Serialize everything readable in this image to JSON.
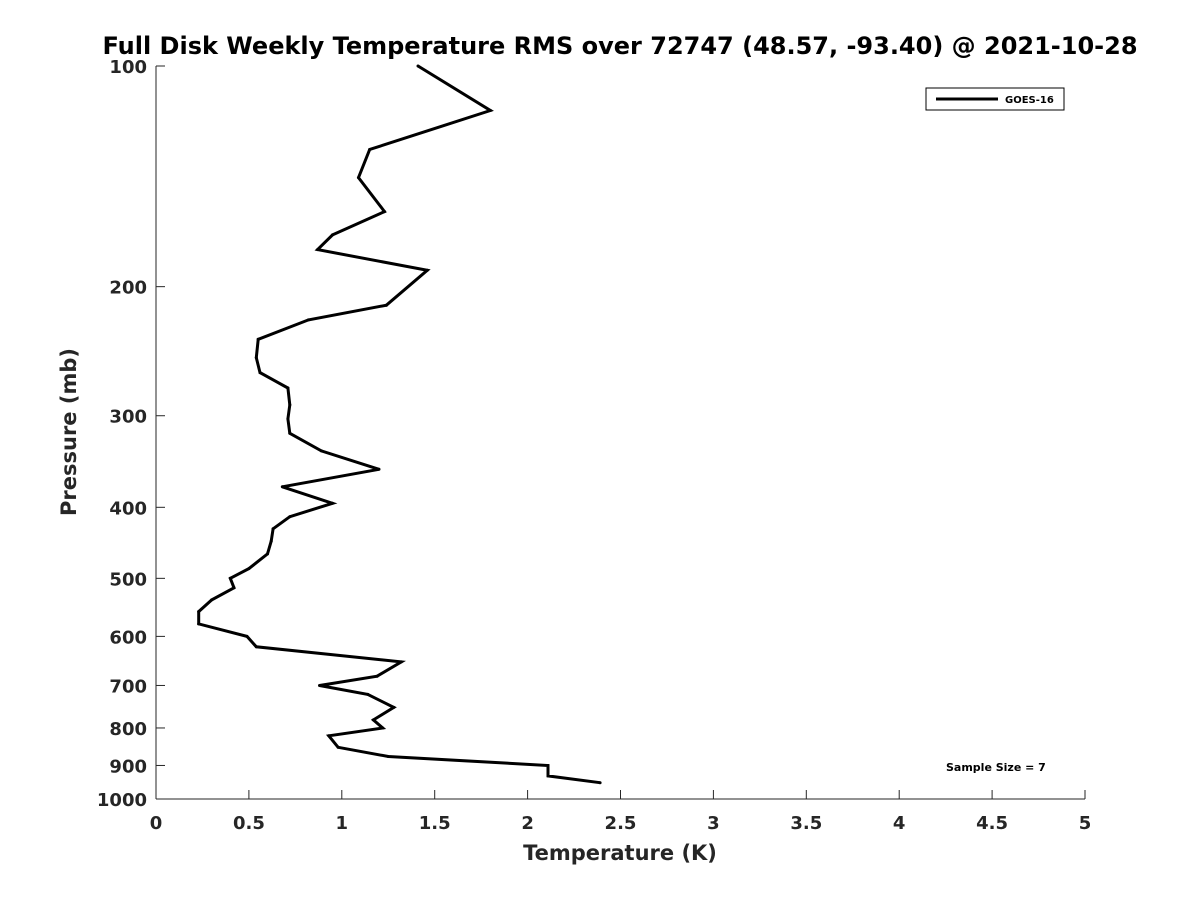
{
  "chart_data": {
    "type": "line",
    "title": "Full Disk Weekly Temperature RMS over 72747 (48.57, -93.40) @ 2021-10-28",
    "xlabel": "Temperature (K)",
    "ylabel": "Pressure (mb)",
    "xlim": [
      0,
      5
    ],
    "ylim": [
      100,
      1000
    ],
    "y_scale": "log",
    "y_reversed": true,
    "grid": false,
    "legend_position": "top-right",
    "x_ticks": [
      "0",
      "0.5",
      "1",
      "1.5",
      "2",
      "2.5",
      "3",
      "3.5",
      "4",
      "4.5",
      "5"
    ],
    "y_ticks": [
      "100",
      "200",
      "300",
      "400",
      "500",
      "600",
      "700",
      "800",
      "900",
      "1000"
    ],
    "annotation": "Sample Size = 7",
    "series": [
      {
        "name": "GOES-16",
        "color": "#000000",
        "x": [
          1.41,
          1.8,
          1.15,
          1.09,
          1.23,
          0.95,
          0.87,
          1.46,
          1.24,
          0.82,
          0.55,
          0.54,
          0.56,
          0.71,
          0.72,
          0.71,
          0.72,
          0.89,
          1.2,
          0.68,
          0.95,
          0.72,
          0.63,
          0.62,
          0.6,
          0.5,
          0.4,
          0.42,
          0.3,
          0.23,
          0.23,
          0.49,
          0.54,
          1.32,
          1.19,
          0.88,
          1.14,
          1.28,
          1.17,
          1.22,
          0.93,
          0.98,
          1.25,
          2.11,
          2.11,
          2.39
        ],
        "y": [
          100,
          115,
          130,
          142,
          158,
          170,
          178,
          190,
          212,
          222,
          236,
          250,
          262,
          275,
          290,
          303,
          317,
          335,
          355,
          375,
          395,
          412,
          428,
          445,
          463,
          485,
          500,
          515,
          535,
          555,
          577,
          600,
          620,
          650,
          680,
          700,
          720,
          750,
          780,
          800,
          820,
          850,
          875,
          900,
          930,
          950
        ]
      }
    ]
  }
}
